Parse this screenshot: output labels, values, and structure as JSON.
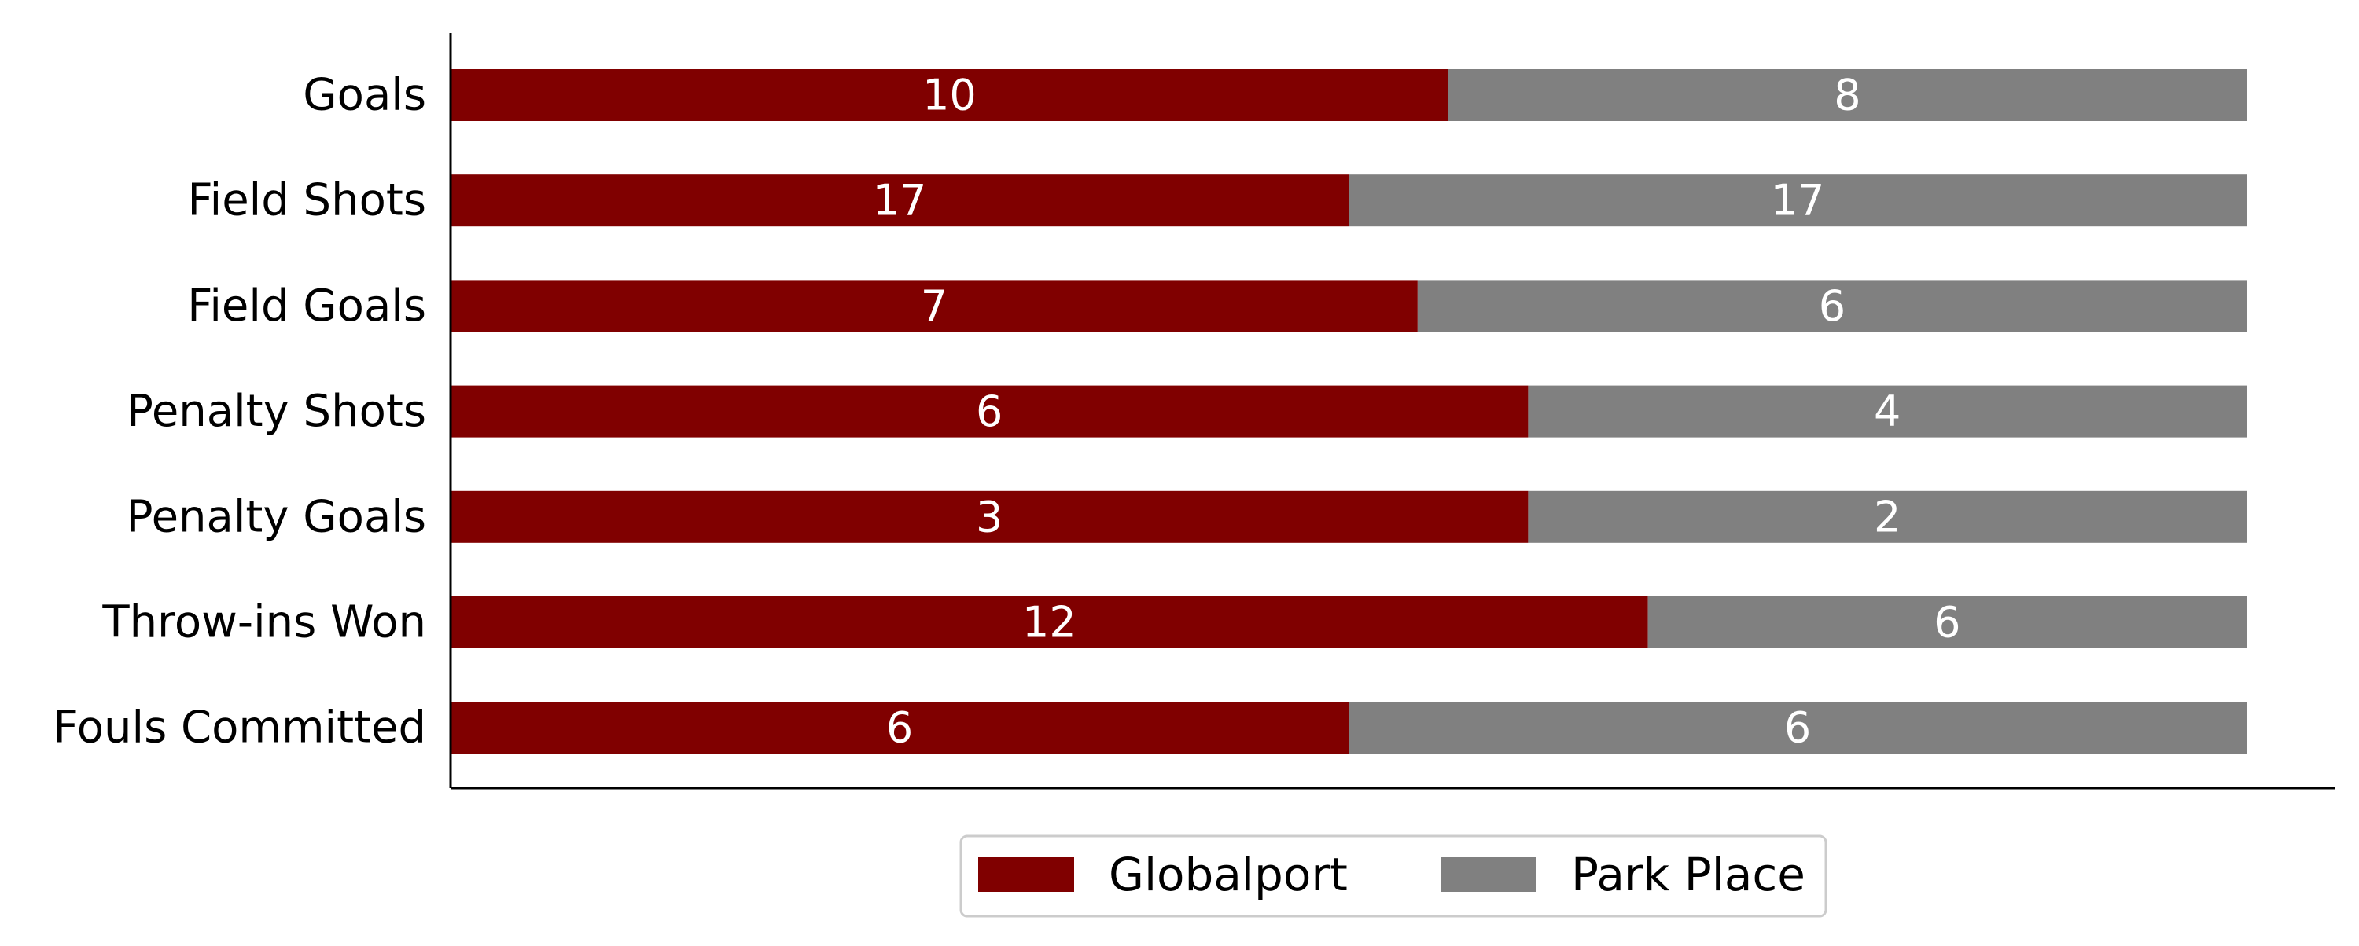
{
  "chart_data": {
    "type": "bar",
    "orientation": "horizontal",
    "stacked": true,
    "normalized": true,
    "categories": [
      "Goals",
      "Field Shots",
      "Field Goals",
      "Penalty Shots",
      "Penalty Goals",
      "Throw-ins Won",
      "Fouls Committed"
    ],
    "series": [
      {
        "name": "Globalport",
        "color": "#800000",
        "values": [
          10,
          17,
          7,
          6,
          3,
          12,
          6
        ]
      },
      {
        "name": "Park Place",
        "color": "#808080",
        "values": [
          8,
          17,
          6,
          4,
          2,
          6,
          6
        ]
      }
    ],
    "title": "",
    "xlabel": "",
    "ylabel": "",
    "x_axis_visible": false,
    "grid": false,
    "legend_position": "bottom-center",
    "value_label_color": "#ffffff"
  }
}
